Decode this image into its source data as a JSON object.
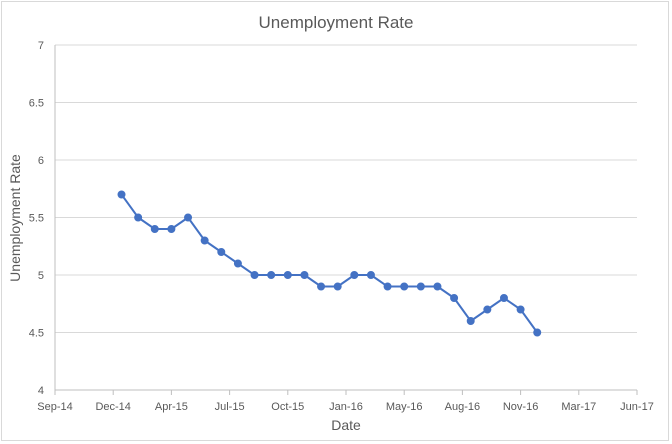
{
  "chart_data": {
    "type": "line",
    "title": "Unemployment Rate",
    "xlabel": "Date",
    "ylabel": "Unemployment Rate",
    "x_ticks": [
      "Sep-14",
      "Dec-14",
      "Apr-15",
      "Jul-15",
      "Oct-15",
      "Jan-16",
      "May-16",
      "Aug-16",
      "Nov-16",
      "Mar-17",
      "Jun-17"
    ],
    "y_ticks": [
      "4",
      "4.5",
      "5",
      "5.5",
      "6",
      "6.5",
      "7"
    ],
    "ylim": [
      4,
      7
    ],
    "grid": true,
    "legend": false,
    "series": [
      {
        "color": "#4472c4",
        "x": [
          "Jan-15",
          "Feb-15",
          "Mar-15",
          "Apr-15",
          "May-15",
          "Jun-15",
          "Jul-15",
          "Aug-15",
          "Sep-15",
          "Oct-15",
          "Nov-15",
          "Dec-15",
          "Jan-16",
          "Feb-16",
          "Mar-16",
          "Apr-16",
          "May-16",
          "Jun-16",
          "Jul-16",
          "Aug-16",
          "Sep-16",
          "Oct-16",
          "Nov-16",
          "Dec-16",
          "Jan-17",
          "Feb-17"
        ],
        "values": [
          5.7,
          5.5,
          5.4,
          5.4,
          5.5,
          5.3,
          5.2,
          5.1,
          5.0,
          5.0,
          5.0,
          5.0,
          4.9,
          4.9,
          5.0,
          5.0,
          4.9,
          4.9,
          4.9,
          4.9,
          4.8,
          4.6,
          4.7,
          4.8,
          4.7,
          4.5
        ]
      }
    ]
  }
}
